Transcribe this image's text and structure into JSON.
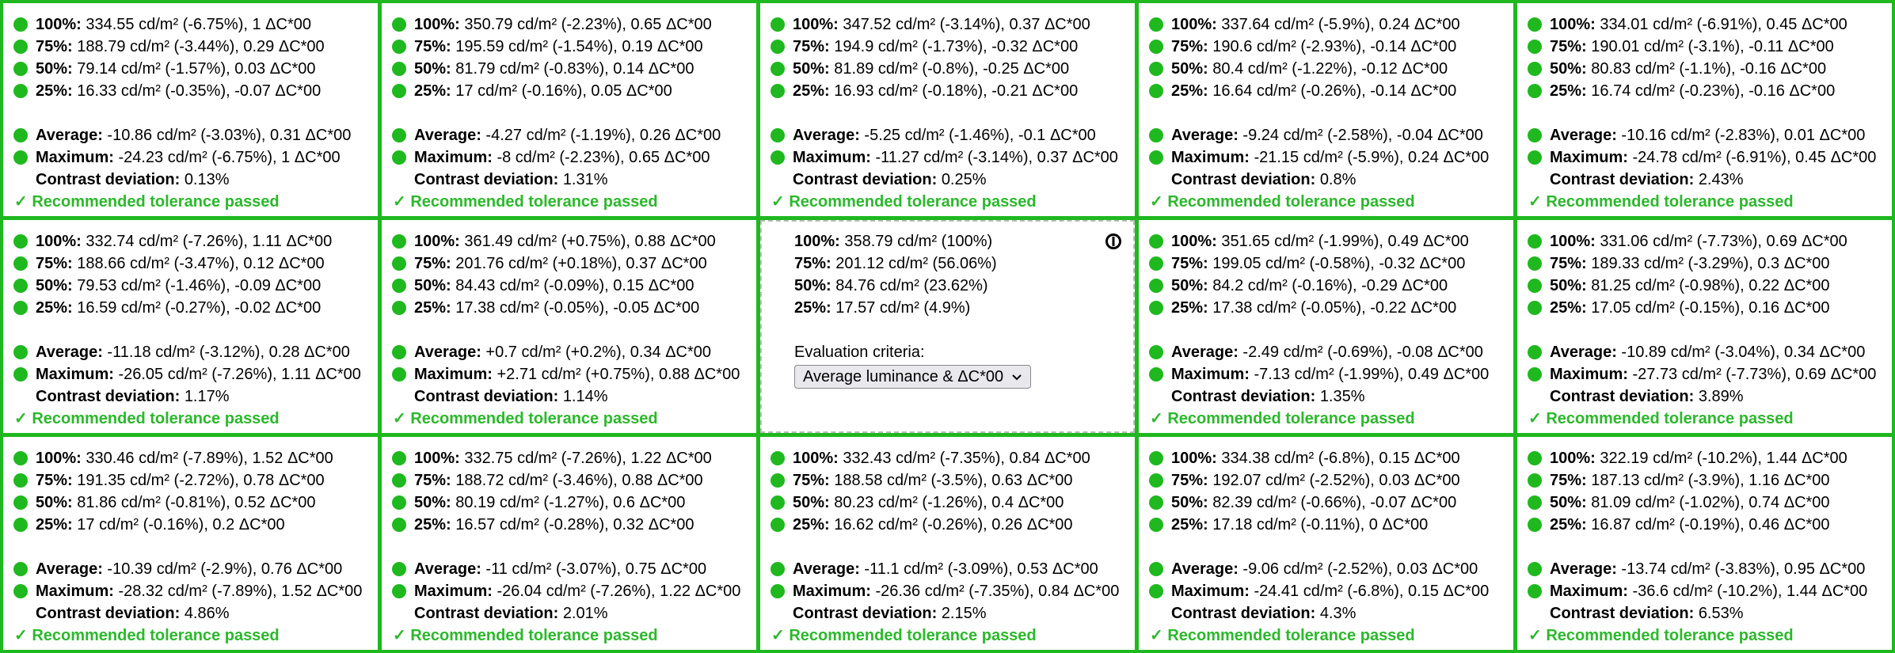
{
  "grid": {
    "cells": [
      {
        "rows": [
          [
            "100%:",
            "334.55 cd/m² (-6.75%), 1 ΔC*00"
          ],
          [
            "75%:",
            "188.79 cd/m² (-3.44%), 0.29 ΔC*00"
          ],
          [
            "50%:",
            "79.14 cd/m² (-1.57%), 0.03 ΔC*00"
          ],
          [
            "25%:",
            "16.33 cd/m² (-0.35%), -0.07 ΔC*00"
          ]
        ],
        "average": [
          "Average:",
          "-10.86 cd/m² (-3.03%), 0.31 ΔC*00"
        ],
        "maximum": [
          "Maximum:",
          "-24.23 cd/m² (-6.75%), 1 ΔC*00"
        ],
        "contrast": [
          "Contrast deviation:",
          "0.13%"
        ],
        "verdict": "✓ Recommended tolerance passed"
      },
      {
        "rows": [
          [
            "100%:",
            "350.79 cd/m² (-2.23%), 0.65 ΔC*00"
          ],
          [
            "75%:",
            "195.59 cd/m² (-1.54%), 0.19 ΔC*00"
          ],
          [
            "50%:",
            "81.79 cd/m² (-0.83%), 0.14 ΔC*00"
          ],
          [
            "25%:",
            "17 cd/m² (-0.16%), 0.05 ΔC*00"
          ]
        ],
        "average": [
          "Average:",
          "-4.27 cd/m² (-1.19%), 0.26 ΔC*00"
        ],
        "maximum": [
          "Maximum:",
          "-8 cd/m² (-2.23%), 0.65 ΔC*00"
        ],
        "contrast": [
          "Contrast deviation:",
          "1.31%"
        ],
        "verdict": "✓ Recommended tolerance passed"
      },
      {
        "rows": [
          [
            "100%:",
            "347.52 cd/m² (-3.14%), 0.37 ΔC*00"
          ],
          [
            "75%:",
            "194.9 cd/m² (-1.73%), -0.32 ΔC*00"
          ],
          [
            "50%:",
            "81.89 cd/m² (-0.8%), -0.25 ΔC*00"
          ],
          [
            "25%:",
            "16.93 cd/m² (-0.18%), -0.21 ΔC*00"
          ]
        ],
        "average": [
          "Average:",
          "-5.25 cd/m² (-1.46%), -0.1 ΔC*00"
        ],
        "maximum": [
          "Maximum:",
          "-11.27 cd/m² (-3.14%), 0.37 ΔC*00"
        ],
        "contrast": [
          "Contrast deviation:",
          "0.25%"
        ],
        "verdict": "✓ Recommended tolerance passed"
      },
      {
        "rows": [
          [
            "100%:",
            "337.64 cd/m² (-5.9%), 0.24 ΔC*00"
          ],
          [
            "75%:",
            "190.6 cd/m² (-2.93%), -0.14 ΔC*00"
          ],
          [
            "50%:",
            "80.4 cd/m² (-1.22%), -0.12 ΔC*00"
          ],
          [
            "25%:",
            "16.64 cd/m² (-0.26%), -0.14 ΔC*00"
          ]
        ],
        "average": [
          "Average:",
          "-9.24 cd/m² (-2.58%), -0.04 ΔC*00"
        ],
        "maximum": [
          "Maximum:",
          "-21.15 cd/m² (-5.9%), 0.24 ΔC*00"
        ],
        "contrast": [
          "Contrast deviation:",
          "0.8%"
        ],
        "verdict": "✓ Recommended tolerance passed"
      },
      {
        "rows": [
          [
            "100%:",
            "334.01 cd/m² (-6.91%), 0.45 ΔC*00"
          ],
          [
            "75%:",
            "190.01 cd/m² (-3.1%), -0.11 ΔC*00"
          ],
          [
            "50%:",
            "80.83 cd/m² (-1.1%), -0.16 ΔC*00"
          ],
          [
            "25%:",
            "16.74 cd/m² (-0.23%), -0.16 ΔC*00"
          ]
        ],
        "average": [
          "Average:",
          "-10.16 cd/m² (-2.83%), 0.01 ΔC*00"
        ],
        "maximum": [
          "Maximum:",
          "-24.78 cd/m² (-6.91%), 0.45 ΔC*00"
        ],
        "contrast": [
          "Contrast deviation:",
          "2.43%"
        ],
        "verdict": "✓ Recommended tolerance passed"
      },
      {
        "rows": [
          [
            "100%:",
            "332.74 cd/m² (-7.26%), 1.11 ΔC*00"
          ],
          [
            "75%:",
            "188.66 cd/m² (-3.47%), 0.12 ΔC*00"
          ],
          [
            "50%:",
            "79.53 cd/m² (-1.46%), -0.09 ΔC*00"
          ],
          [
            "25%:",
            "16.59 cd/m² (-0.27%), -0.02 ΔC*00"
          ]
        ],
        "average": [
          "Average:",
          "-11.18 cd/m² (-3.12%), 0.28 ΔC*00"
        ],
        "maximum": [
          "Maximum:",
          "-26.05 cd/m² (-7.26%), 1.11 ΔC*00"
        ],
        "contrast": [
          "Contrast deviation:",
          "1.17%"
        ],
        "verdict": "✓ Recommended tolerance passed"
      },
      {
        "rows": [
          [
            "100%:",
            "361.49 cd/m² (+0.75%), 0.88 ΔC*00"
          ],
          [
            "75%:",
            "201.76 cd/m² (+0.18%), 0.37 ΔC*00"
          ],
          [
            "50%:",
            "84.43 cd/m² (-0.09%), 0.15 ΔC*00"
          ],
          [
            "25%:",
            "17.38 cd/m² (-0.05%), -0.05 ΔC*00"
          ]
        ],
        "average": [
          "Average:",
          "+0.7 cd/m² (+0.2%), 0.34 ΔC*00"
        ],
        "maximum": [
          "Maximum:",
          "+2.71 cd/m² (+0.75%), 0.88 ΔC*00"
        ],
        "contrast": [
          "Contrast deviation:",
          "1.14%"
        ],
        "verdict": "✓ Recommended tolerance passed"
      },
      {
        "rows": [
          [
            "100%:",
            "358.79 cd/m² (100%)"
          ],
          [
            "75%:",
            "201.12 cd/m² (56.06%)"
          ],
          [
            "50%:",
            "84.76 cd/m² (23.62%)"
          ],
          [
            "25%:",
            "17.57 cd/m² (4.9%)"
          ]
        ],
        "criteria_label": "Evaluation criteria:",
        "criteria": "Average luminance & ΔC*00"
      },
      {
        "rows": [
          [
            "100%:",
            "351.65 cd/m² (-1.99%), 0.49 ΔC*00"
          ],
          [
            "75%:",
            "199.05 cd/m² (-0.58%), -0.32 ΔC*00"
          ],
          [
            "50%:",
            "84.2 cd/m² (-0.16%), -0.29 ΔC*00"
          ],
          [
            "25%:",
            "17.38 cd/m² (-0.05%), -0.22 ΔC*00"
          ]
        ],
        "average": [
          "Average:",
          "-2.49 cd/m² (-0.69%), -0.08 ΔC*00"
        ],
        "maximum": [
          "Maximum:",
          "-7.13 cd/m² (-1.99%), 0.49 ΔC*00"
        ],
        "contrast": [
          "Contrast deviation:",
          "1.35%"
        ],
        "verdict": "✓ Recommended tolerance passed"
      },
      {
        "rows": [
          [
            "100%:",
            "331.06 cd/m² (-7.73%), 0.69 ΔC*00"
          ],
          [
            "75%:",
            "189.33 cd/m² (-3.29%), 0.3 ΔC*00"
          ],
          [
            "50%:",
            "81.25 cd/m² (-0.98%), 0.22 ΔC*00"
          ],
          [
            "25%:",
            "17.05 cd/m² (-0.15%), 0.16 ΔC*00"
          ]
        ],
        "average": [
          "Average:",
          "-10.89 cd/m² (-3.04%), 0.34 ΔC*00"
        ],
        "maximum": [
          "Maximum:",
          "-27.73 cd/m² (-7.73%), 0.69 ΔC*00"
        ],
        "contrast": [
          "Contrast deviation:",
          "3.89%"
        ],
        "verdict": "✓ Recommended tolerance passed"
      },
      {
        "rows": [
          [
            "100%:",
            "330.46 cd/m² (-7.89%), 1.52 ΔC*00"
          ],
          [
            "75%:",
            "191.35 cd/m² (-2.72%), 0.78 ΔC*00"
          ],
          [
            "50%:",
            "81.86 cd/m² (-0.81%), 0.52 ΔC*00"
          ],
          [
            "25%:",
            "17 cd/m² (-0.16%), 0.2 ΔC*00"
          ]
        ],
        "average": [
          "Average:",
          "-10.39 cd/m² (-2.9%), 0.76 ΔC*00"
        ],
        "maximum": [
          "Maximum:",
          "-28.32 cd/m² (-7.89%), 1.52 ΔC*00"
        ],
        "contrast": [
          "Contrast deviation:",
          "4.86%"
        ],
        "verdict": "✓ Recommended tolerance passed"
      },
      {
        "rows": [
          [
            "100%:",
            "332.75 cd/m² (-7.26%), 1.22 ΔC*00"
          ],
          [
            "75%:",
            "188.72 cd/m² (-3.46%), 0.88 ΔC*00"
          ],
          [
            "50%:",
            "80.19 cd/m² (-1.27%), 0.6 ΔC*00"
          ],
          [
            "25%:",
            "16.57 cd/m² (-0.28%), 0.32 ΔC*00"
          ]
        ],
        "average": [
          "Average:",
          "-11 cd/m² (-3.07%), 0.75 ΔC*00"
        ],
        "maximum": [
          "Maximum:",
          "-26.04 cd/m² (-7.26%), 1.22 ΔC*00"
        ],
        "contrast": [
          "Contrast deviation:",
          "2.01%"
        ],
        "verdict": "✓ Recommended tolerance passed"
      },
      {
        "rows": [
          [
            "100%:",
            "332.43 cd/m² (-7.35%), 0.84 ΔC*00"
          ],
          [
            "75%:",
            "188.58 cd/m² (-3.5%), 0.63 ΔC*00"
          ],
          [
            "50%:",
            "80.23 cd/m² (-1.26%), 0.4 ΔC*00"
          ],
          [
            "25%:",
            "16.62 cd/m² (-0.26%), 0.26 ΔC*00"
          ]
        ],
        "average": [
          "Average:",
          "-11.1 cd/m² (-3.09%), 0.53 ΔC*00"
        ],
        "maximum": [
          "Maximum:",
          "-26.36 cd/m² (-7.35%), 0.84 ΔC*00"
        ],
        "contrast": [
          "Contrast deviation:",
          "2.15%"
        ],
        "verdict": "✓ Recommended tolerance passed"
      },
      {
        "rows": [
          [
            "100%:",
            "334.38 cd/m² (-6.8%), 0.15 ΔC*00"
          ],
          [
            "75%:",
            "192.07 cd/m² (-2.52%), 0.03 ΔC*00"
          ],
          [
            "50%:",
            "82.39 cd/m² (-0.66%), -0.07 ΔC*00"
          ],
          [
            "25%:",
            "17.18 cd/m² (-0.11%), 0 ΔC*00"
          ]
        ],
        "average": [
          "Average:",
          "-9.06 cd/m² (-2.52%), 0.03 ΔC*00"
        ],
        "maximum": [
          "Maximum:",
          "-24.41 cd/m² (-6.8%), 0.15 ΔC*00"
        ],
        "contrast": [
          "Contrast deviation:",
          "4.3%"
        ],
        "verdict": "✓ Recommended tolerance passed"
      },
      {
        "rows": [
          [
            "100%:",
            "322.19 cd/m² (-10.2%), 1.44 ΔC*00"
          ],
          [
            "75%:",
            "187.13 cd/m² (-3.9%), 1.16 ΔC*00"
          ],
          [
            "50%:",
            "81.09 cd/m² (-1.02%), 0.74 ΔC*00"
          ],
          [
            "25%:",
            "16.87 cd/m² (-0.19%), 0.46 ΔC*00"
          ]
        ],
        "average": [
          "Average:",
          "-13.74 cd/m² (-3.83%), 0.95 ΔC*00"
        ],
        "maximum": [
          "Maximum:",
          "-36.6 cd/m² (-10.2%), 1.44 ΔC*00"
        ],
        "contrast": [
          "Contrast deviation:",
          "6.53%"
        ],
        "verdict": "✓ Recommended tolerance passed"
      }
    ]
  }
}
